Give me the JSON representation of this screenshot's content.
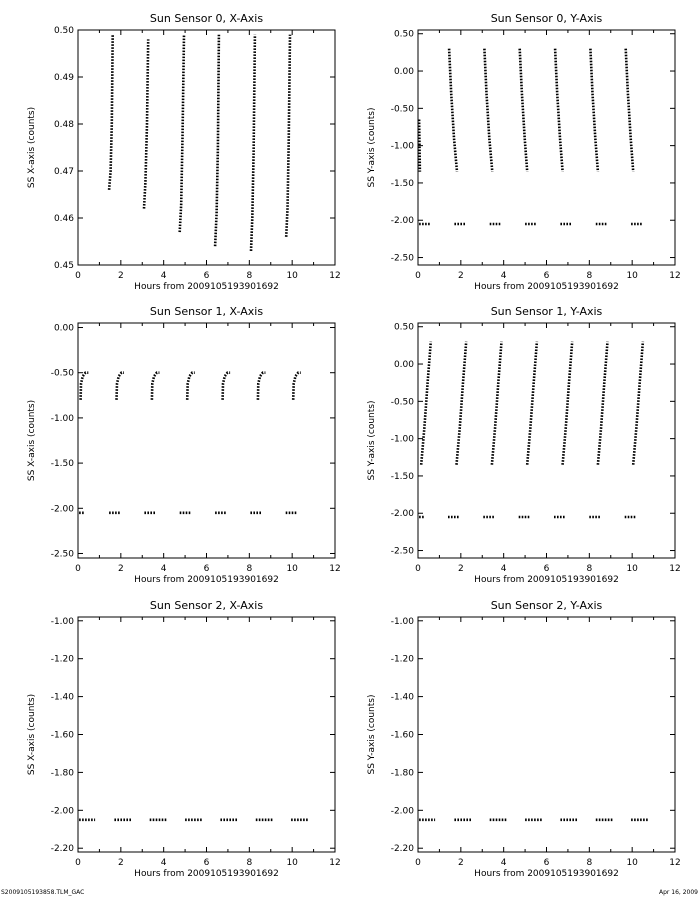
{
  "footer": {
    "left": "S2009105193858.TLM_GAC",
    "right": "Apr 16, 2009"
  },
  "chart_data": [
    {
      "type": "scatter",
      "title": "Sun Sensor 0, X-Axis",
      "xlabel": "Hours from 2009105193901692",
      "ylabel": "SS X-axis (counts)",
      "xlim": [
        0,
        12
      ],
      "ylim": [
        0.45,
        0.5
      ],
      "xticks": [
        "0",
        "2",
        "4",
        "6",
        "8",
        "10",
        "12"
      ],
      "yticks": [
        "0.45",
        "0.46",
        "0.47",
        "0.48",
        "0.49",
        "0.50"
      ],
      "series": [
        {
          "segments": [
            {
              "x": [
                1.45,
                1.52,
                1.58,
                1.62
              ],
              "y": [
                0.466,
                0.47,
                0.48,
                0.499
              ]
            },
            {
              "x": [
                3.08,
                3.15,
                3.22,
                3.28
              ],
              "y": [
                0.462,
                0.468,
                0.48,
                0.498
              ]
            },
            {
              "x": [
                4.75,
                4.82,
                4.88,
                4.95
              ],
              "y": [
                0.457,
                0.463,
                0.477,
                0.499
              ]
            },
            {
              "x": [
                6.4,
                6.47,
                6.53,
                6.58
              ],
              "y": [
                0.454,
                0.461,
                0.475,
                0.499
              ]
            },
            {
              "x": [
                8.08,
                8.14,
                8.2,
                8.26
              ],
              "y": [
                0.453,
                0.46,
                0.474,
                0.499
              ]
            },
            {
              "x": [
                9.72,
                9.78,
                9.84,
                9.9
              ],
              "y": [
                0.456,
                0.462,
                0.476,
                0.499
              ]
            }
          ]
        }
      ]
    },
    {
      "type": "scatter",
      "title": "Sun Sensor 0, Y-Axis",
      "xlabel": "Hours from 2009105193901692",
      "ylabel": "SS Y-axis (counts)",
      "xlim": [
        0,
        12
      ],
      "ylim": [
        -2.6,
        0.55
      ],
      "xticks": [
        "0",
        "2",
        "4",
        "6",
        "8",
        "10",
        "12"
      ],
      "yticks": [
        "-2.50",
        "-2.00",
        "-1.50",
        "-1.00",
        "-0.50",
        "0.00",
        "0.50"
      ],
      "series": [
        {
          "segments": [
            {
              "x": [
                0.05,
                0.07,
                0.09
              ],
              "y": [
                -0.65,
                -1.0,
                -1.35
              ]
            },
            {
              "x": [
                1.45,
                1.55,
                1.68,
                1.82
              ],
              "y": [
                0.3,
                -0.3,
                -0.9,
                -1.35
              ]
            },
            {
              "x": [
                3.1,
                3.2,
                3.33,
                3.47
              ],
              "y": [
                0.3,
                -0.3,
                -0.9,
                -1.35
              ]
            },
            {
              "x": [
                4.75,
                4.85,
                4.98,
                5.1
              ],
              "y": [
                0.3,
                -0.3,
                -0.9,
                -1.35
              ]
            },
            {
              "x": [
                6.4,
                6.5,
                6.63,
                6.75
              ],
              "y": [
                0.3,
                -0.3,
                -0.9,
                -1.35
              ]
            },
            {
              "x": [
                8.05,
                8.15,
                8.28,
                8.4
              ],
              "y": [
                0.3,
                -0.3,
                -0.9,
                -1.35
              ]
            },
            {
              "x": [
                9.7,
                9.8,
                9.93,
                10.05
              ],
              "y": [
                0.3,
                -0.3,
                -0.9,
                -1.35
              ]
            }
          ]
        },
        {
          "segments": [
            {
              "x": [
                0.05,
                0.55
              ],
              "y": [
                -2.05,
                -2.05
              ]
            },
            {
              "x": [
                1.7,
                2.2
              ],
              "y": [
                -2.05,
                -2.05
              ]
            },
            {
              "x": [
                3.35,
                3.85
              ],
              "y": [
                -2.05,
                -2.05
              ]
            },
            {
              "x": [
                5.0,
                5.5
              ],
              "y": [
                -2.05,
                -2.05
              ]
            },
            {
              "x": [
                6.65,
                7.15
              ],
              "y": [
                -2.05,
                -2.05
              ]
            },
            {
              "x": [
                8.3,
                8.8
              ],
              "y": [
                -2.05,
                -2.05
              ]
            },
            {
              "x": [
                9.95,
                10.45
              ],
              "y": [
                -2.05,
                -2.05
              ]
            }
          ]
        }
      ]
    },
    {
      "type": "scatter",
      "title": "Sun Sensor 1, X-Axis",
      "xlabel": "Hours from 2009105193901692",
      "ylabel": "SS X-axis (counts)",
      "xlim": [
        0,
        12
      ],
      "ylim": [
        -2.55,
        0.05
      ],
      "xticks": [
        "0",
        "2",
        "4",
        "6",
        "8",
        "10",
        "12"
      ],
      "yticks": [
        "-2.50",
        "-2.00",
        "-1.50",
        "-1.00",
        "-0.50",
        "0.00"
      ],
      "series": [
        {
          "segments": [
            {
              "x": [
                0.12,
                0.14,
                0.22,
                0.35,
                0.48
              ],
              "y": [
                -0.8,
                -0.62,
                -0.54,
                -0.5,
                -0.5
              ]
            },
            {
              "x": [
                1.8,
                1.82,
                1.9,
                2.03,
                2.15
              ],
              "y": [
                -0.8,
                -0.62,
                -0.54,
                -0.5,
                -0.5
              ]
            },
            {
              "x": [
                3.45,
                3.47,
                3.55,
                3.68,
                3.8
              ],
              "y": [
                -0.8,
                -0.62,
                -0.54,
                -0.5,
                -0.5
              ]
            },
            {
              "x": [
                5.1,
                5.12,
                5.2,
                5.33,
                5.45
              ],
              "y": [
                -0.8,
                -0.62,
                -0.54,
                -0.5,
                -0.5
              ]
            },
            {
              "x": [
                6.75,
                6.77,
                6.85,
                6.98,
                7.1
              ],
              "y": [
                -0.8,
                -0.62,
                -0.54,
                -0.5,
                -0.5
              ]
            },
            {
              "x": [
                8.4,
                8.42,
                8.5,
                8.63,
                8.75
              ],
              "y": [
                -0.8,
                -0.62,
                -0.54,
                -0.5,
                -0.5
              ]
            },
            {
              "x": [
                10.05,
                10.07,
                10.15,
                10.28,
                10.4
              ],
              "y": [
                -0.8,
                -0.62,
                -0.54,
                -0.5,
                -0.5
              ]
            }
          ]
        },
        {
          "segments": [
            {
              "x": [
                0.05,
                0.3
              ],
              "y": [
                -2.05,
                -2.05
              ]
            },
            {
              "x": [
                1.45,
                1.95
              ],
              "y": [
                -2.05,
                -2.05
              ]
            },
            {
              "x": [
                3.1,
                3.6
              ],
              "y": [
                -2.05,
                -2.05
              ]
            },
            {
              "x": [
                4.75,
                5.25
              ],
              "y": [
                -2.05,
                -2.05
              ]
            },
            {
              "x": [
                6.4,
                6.9
              ],
              "y": [
                -2.05,
                -2.05
              ]
            },
            {
              "x": [
                8.05,
                8.55
              ],
              "y": [
                -2.05,
                -2.05
              ]
            },
            {
              "x": [
                9.7,
                10.2
              ],
              "y": [
                -2.05,
                -2.05
              ]
            }
          ]
        }
      ]
    },
    {
      "type": "scatter",
      "title": "Sun Sensor 1, Y-Axis",
      "xlabel": "Hours from 2009105193901692",
      "ylabel": "SS Y-axis (counts)",
      "xlim": [
        0,
        12
      ],
      "ylim": [
        -2.6,
        0.55
      ],
      "xticks": [
        "0",
        "2",
        "4",
        "6",
        "8",
        "10",
        "12"
      ],
      "yticks": [
        "-2.50",
        "-2.00",
        "-1.50",
        "-1.00",
        "-0.50",
        "0.00",
        "0.50"
      ],
      "series": [
        {
          "segments": [
            {
              "x": [
                0.15,
                0.3,
                0.45,
                0.6
              ],
              "y": [
                -1.35,
                -0.85,
                -0.25,
                0.3
              ]
            },
            {
              "x": [
                1.8,
                1.95,
                2.1,
                2.25
              ],
              "y": [
                -1.35,
                -0.85,
                -0.25,
                0.3
              ]
            },
            {
              "x": [
                3.45,
                3.6,
                3.75,
                3.9
              ],
              "y": [
                -1.35,
                -0.85,
                -0.25,
                0.3
              ]
            },
            {
              "x": [
                5.1,
                5.25,
                5.4,
                5.55
              ],
              "y": [
                -1.35,
                -0.85,
                -0.25,
                0.3
              ]
            },
            {
              "x": [
                6.75,
                6.9,
                7.05,
                7.2
              ],
              "y": [
                -1.35,
                -0.85,
                -0.25,
                0.3
              ]
            },
            {
              "x": [
                8.4,
                8.55,
                8.7,
                8.85
              ],
              "y": [
                -1.35,
                -0.85,
                -0.25,
                0.3
              ]
            },
            {
              "x": [
                10.05,
                10.2,
                10.35,
                10.5
              ],
              "y": [
                -1.35,
                -0.85,
                -0.25,
                0.3
              ]
            }
          ]
        },
        {
          "segments": [
            {
              "x": [
                0.05,
                0.3
              ],
              "y": [
                -2.05,
                -2.05
              ]
            },
            {
              "x": [
                1.4,
                1.9
              ],
              "y": [
                -2.05,
                -2.05
              ]
            },
            {
              "x": [
                3.05,
                3.55
              ],
              "y": [
                -2.05,
                -2.05
              ]
            },
            {
              "x": [
                4.7,
                5.2
              ],
              "y": [
                -2.05,
                -2.05
              ]
            },
            {
              "x": [
                6.35,
                6.85
              ],
              "y": [
                -2.05,
                -2.05
              ]
            },
            {
              "x": [
                8.0,
                8.5
              ],
              "y": [
                -2.05,
                -2.05
              ]
            },
            {
              "x": [
                9.65,
                10.15
              ],
              "y": [
                -2.05,
                -2.05
              ]
            }
          ]
        }
      ]
    },
    {
      "type": "scatter",
      "title": "Sun Sensor 2, X-Axis",
      "xlabel": "Hours from 2009105193901692",
      "ylabel": "SS X-axis (counts)",
      "xlim": [
        0,
        12
      ],
      "ylim": [
        -2.22,
        -0.98
      ],
      "xticks": [
        "0",
        "2",
        "4",
        "6",
        "8",
        "10",
        "12"
      ],
      "yticks": [
        "-2.20",
        "-2.00",
        "-1.80",
        "-1.60",
        "-1.40",
        "-1.20",
        "-1.00"
      ],
      "series": [
        {
          "segments": [
            {
              "x": [
                0.05,
                0.8
              ],
              "y": [
                -2.05,
                -2.05
              ]
            },
            {
              "x": [
                1.7,
                2.5
              ],
              "y": [
                -2.05,
                -2.05
              ]
            },
            {
              "x": [
                3.35,
                4.15
              ],
              "y": [
                -2.05,
                -2.05
              ]
            },
            {
              "x": [
                5.0,
                5.8
              ],
              "y": [
                -2.05,
                -2.05
              ]
            },
            {
              "x": [
                6.65,
                7.45
              ],
              "y": [
                -2.05,
                -2.05
              ]
            },
            {
              "x": [
                8.3,
                9.1
              ],
              "y": [
                -2.05,
                -2.05
              ]
            },
            {
              "x": [
                9.95,
                10.75
              ],
              "y": [
                -2.05,
                -2.05
              ]
            }
          ]
        }
      ]
    },
    {
      "type": "scatter",
      "title": "Sun Sensor 2, Y-Axis",
      "xlabel": "Hours from 2009105193901692",
      "ylabel": "SS Y-axis (counts)",
      "xlim": [
        0,
        12
      ],
      "ylim": [
        -2.22,
        -0.98
      ],
      "xticks": [
        "0",
        "2",
        "4",
        "6",
        "8",
        "10",
        "12"
      ],
      "yticks": [
        "-2.20",
        "-2.00",
        "-1.80",
        "-1.60",
        "-1.40",
        "-1.20",
        "-1.00"
      ],
      "series": [
        {
          "segments": [
            {
              "x": [
                0.05,
                0.8
              ],
              "y": [
                -2.05,
                -2.05
              ]
            },
            {
              "x": [
                1.7,
                2.5
              ],
              "y": [
                -2.05,
                -2.05
              ]
            },
            {
              "x": [
                3.35,
                4.15
              ],
              "y": [
                -2.05,
                -2.05
              ]
            },
            {
              "x": [
                5.0,
                5.8
              ],
              "y": [
                -2.05,
                -2.05
              ]
            },
            {
              "x": [
                6.65,
                7.45
              ],
              "y": [
                -2.05,
                -2.05
              ]
            },
            {
              "x": [
                8.3,
                9.1
              ],
              "y": [
                -2.05,
                -2.05
              ]
            },
            {
              "x": [
                9.95,
                10.75
              ],
              "y": [
                -2.05,
                -2.05
              ]
            }
          ]
        }
      ]
    }
  ]
}
